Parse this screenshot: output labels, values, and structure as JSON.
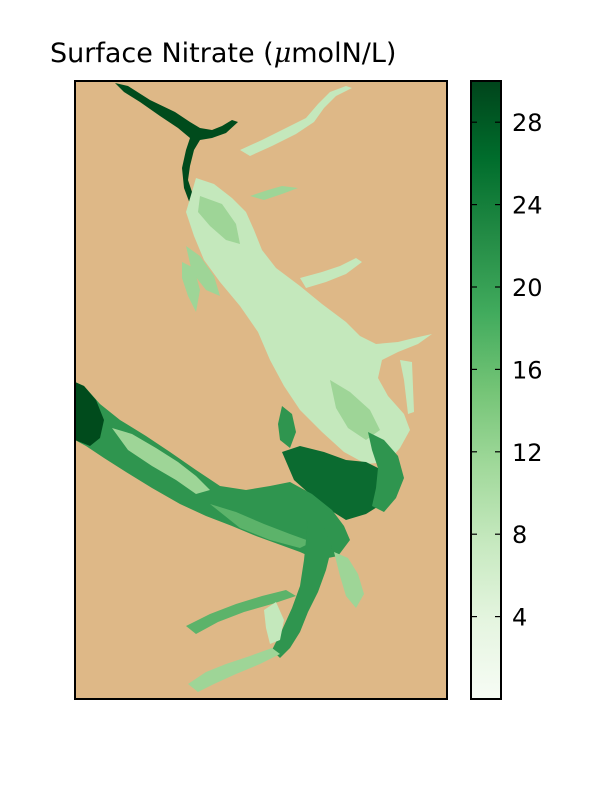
{
  "map": {
    "title_prefix": "Surface Nitrate (",
    "title_mu": "μ",
    "title_suffix": "molN/L)",
    "land_color": "#deb887",
    "water_colors": {
      "pale": "#c4e8bc",
      "light": "#9ed597",
      "mid": "#5cb36a",
      "green": "#2f954f",
      "dark": "#0b6b30",
      "darkest": "#004b1c"
    }
  },
  "colorbar": {
    "min": 0,
    "max": 30,
    "cmap": "Greens",
    "stops": [
      "#f7fcf5",
      "#e5f5e0",
      "#c7e9c0",
      "#a1d99b",
      "#74c476",
      "#41ab5d",
      "#238b45",
      "#006d2c",
      "#00441b"
    ],
    "ticks": [
      {
        "value": 4,
        "label": "4"
      },
      {
        "value": 8,
        "label": "8"
      },
      {
        "value": 12,
        "label": "12"
      },
      {
        "value": 16,
        "label": "16"
      },
      {
        "value": 20,
        "label": "20"
      },
      {
        "value": 24,
        "label": "24"
      },
      {
        "value": 28,
        "label": "28"
      }
    ]
  }
}
